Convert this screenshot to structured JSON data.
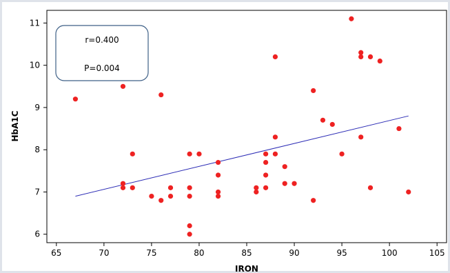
{
  "chart_data": {
    "type": "scatter",
    "title": "",
    "xlabel": "IRON",
    "ylabel": "HbA1C",
    "xlim": [
      64,
      106
    ],
    "ylim": [
      5.8,
      11.3
    ],
    "xticks": [
      65,
      70,
      75,
      80,
      85,
      90,
      95,
      100,
      105
    ],
    "yticks": [
      6,
      7,
      8,
      9,
      10,
      11
    ],
    "grid": false,
    "series": [
      {
        "name": "",
        "color": "#ee2222",
        "points": [
          [
            67,
            9.2
          ],
          [
            72,
            9.5
          ],
          [
            72,
            7.2
          ],
          [
            72,
            7.1
          ],
          [
            73,
            7.9
          ],
          [
            73,
            7.1
          ],
          [
            75,
            6.9
          ],
          [
            76,
            9.3
          ],
          [
            76,
            6.8
          ],
          [
            77,
            7.1
          ],
          [
            77,
            6.9
          ],
          [
            79,
            7.9
          ],
          [
            79,
            7.1
          ],
          [
            79,
            6.9
          ],
          [
            79,
            6.2
          ],
          [
            79,
            6.0
          ],
          [
            80,
            7.9
          ],
          [
            82,
            7.7
          ],
          [
            82,
            7.4
          ],
          [
            82,
            7.0
          ],
          [
            82,
            6.9
          ],
          [
            86,
            7.1
          ],
          [
            86,
            7.0
          ],
          [
            87,
            7.9
          ],
          [
            87,
            7.7
          ],
          [
            87,
            7.4
          ],
          [
            87,
            7.1
          ],
          [
            88,
            10.2
          ],
          [
            88,
            8.3
          ],
          [
            88,
            7.9
          ],
          [
            89,
            7.6
          ],
          [
            89,
            7.2
          ],
          [
            90,
            7.2
          ],
          [
            92,
            9.4
          ],
          [
            92,
            6.8
          ],
          [
            93,
            8.7
          ],
          [
            94,
            8.6
          ],
          [
            95,
            7.9
          ],
          [
            96,
            11.1
          ],
          [
            97,
            10.3
          ],
          [
            97,
            10.2
          ],
          [
            97,
            8.3
          ],
          [
            98,
            10.2
          ],
          [
            98,
            7.1
          ],
          [
            99,
            10.1
          ],
          [
            101,
            8.5
          ],
          [
            102,
            7.0
          ]
        ]
      }
    ],
    "trend_line": {
      "color": "#2b2bb5",
      "x": [
        67,
        102
      ],
      "y": [
        6.9,
        8.8
      ]
    },
    "annotation": {
      "r_text": "r=0.400",
      "p_text": "P=0.004"
    }
  }
}
